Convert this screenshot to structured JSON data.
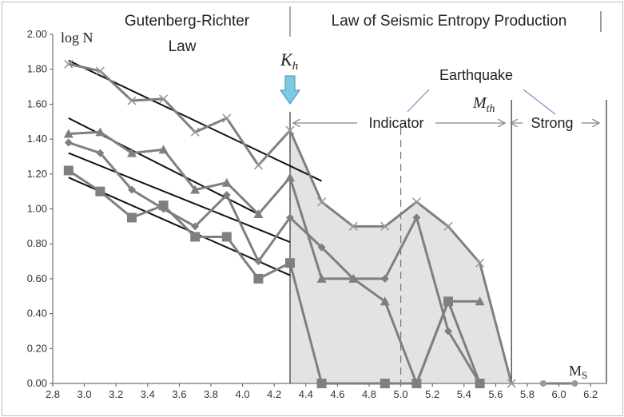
{
  "chart_data": {
    "type": "line",
    "xlim": [
      2.8,
      6.3
    ],
    "ylim": [
      0,
      2.0
    ],
    "x_ticks": [
      "2.8",
      "3.0",
      "3.2",
      "3.4",
      "3.6",
      "3.8",
      "4.0",
      "4.2",
      "4.4",
      "4.6",
      "4.8",
      "5.0",
      "5.2",
      "5.4",
      "5.6",
      "5.8",
      "6.0",
      "6.2"
    ],
    "y_ticks": [
      "0.00",
      "0.20",
      "0.40",
      "0.60",
      "0.80",
      "1.00",
      "1.20",
      "1.40",
      "1.60",
      "1.80",
      "2.00"
    ],
    "ylabel": "log N",
    "xlabel": "M",
    "xlabel_sub": "S",
    "series": [
      {
        "marker": "x",
        "points": [
          [
            2.9,
            1.83
          ],
          [
            3.1,
            1.79
          ],
          [
            3.3,
            1.62
          ],
          [
            3.5,
            1.63
          ],
          [
            3.7,
            1.44
          ],
          [
            3.9,
            1.52
          ],
          [
            4.1,
            1.25
          ],
          [
            4.3,
            1.45
          ],
          [
            4.5,
            1.04
          ],
          [
            4.7,
            0.9
          ],
          [
            4.9,
            0.9
          ],
          [
            5.1,
            1.04
          ],
          [
            5.3,
            0.9
          ],
          [
            5.5,
            0.69
          ],
          [
            5.7,
            0.0
          ]
        ]
      },
      {
        "marker": "triangle",
        "points": [
          [
            2.9,
            1.43
          ],
          [
            3.1,
            1.44
          ],
          [
            3.3,
            1.32
          ],
          [
            3.5,
            1.34
          ],
          [
            3.7,
            1.11
          ],
          [
            3.9,
            1.15
          ],
          [
            4.1,
            0.97
          ],
          [
            4.3,
            1.18
          ],
          [
            4.5,
            0.6
          ],
          [
            4.7,
            0.6
          ],
          [
            4.9,
            0.47
          ],
          [
            5.1,
            0.0
          ],
          [
            5.3,
            0.47
          ],
          [
            5.5,
            0.47
          ]
        ]
      },
      {
        "marker": "diamond",
        "points": [
          [
            2.9,
            1.38
          ],
          [
            3.1,
            1.32
          ],
          [
            3.3,
            1.11
          ],
          [
            3.5,
            1.0
          ],
          [
            3.7,
            0.9
          ],
          [
            3.9,
            1.08
          ],
          [
            4.1,
            0.7
          ],
          [
            4.3,
            0.95
          ],
          [
            4.5,
            0.78
          ],
          [
            4.7,
            0.6
          ],
          [
            4.9,
            0.6
          ],
          [
            5.1,
            0.95
          ],
          [
            5.3,
            0.3
          ],
          [
            5.5,
            0.0
          ]
        ]
      },
      {
        "marker": "square",
        "points": [
          [
            2.9,
            1.22
          ],
          [
            3.1,
            1.1
          ],
          [
            3.3,
            0.95
          ],
          [
            3.5,
            1.02
          ],
          [
            3.7,
            0.84
          ],
          [
            3.9,
            0.84
          ],
          [
            4.1,
            0.6
          ],
          [
            4.3,
            0.69
          ],
          [
            4.5,
            0.0
          ],
          [
            4.9,
            0.0
          ],
          [
            5.1,
            0.0
          ],
          [
            5.3,
            0.47
          ],
          [
            5.5,
            0.0
          ]
        ]
      },
      {
        "marker": "circle",
        "points": [
          [
            5.9,
            0.0
          ],
          [
            6.1,
            0.0
          ]
        ]
      }
    ],
    "fit_lines": [
      [
        [
          2.9,
          1.85
        ],
        [
          4.5,
          1.16
        ]
      ],
      [
        [
          2.9,
          1.52
        ],
        [
          4.1,
          0.97
        ]
      ],
      [
        [
          2.9,
          1.32
        ],
        [
          4.3,
          0.81
        ]
      ],
      [
        [
          2.9,
          1.18
        ],
        [
          4.3,
          0.62
        ]
      ]
    ],
    "shaded_region": [
      [
        4.3,
        1.45
      ],
      [
        4.5,
        1.04
      ],
      [
        4.7,
        0.9
      ],
      [
        4.9,
        0.9
      ],
      [
        5.1,
        1.04
      ],
      [
        5.3,
        0.9
      ],
      [
        5.5,
        0.69
      ],
      [
        5.7,
        0.0
      ],
      [
        4.3,
        0.0
      ]
    ],
    "vertical_lines": [
      {
        "x": 4.3,
        "style": "solid"
      },
      {
        "x": 5.0,
        "style": "dashed"
      },
      {
        "x": 5.7,
        "style": "solid"
      },
      {
        "x": 6.3,
        "style": "solid"
      }
    ],
    "annotations": {
      "gr_title_line1": "Gutenberg-Richter",
      "gr_title_line2": "Law",
      "entropy_title": "Law of Seismic Entropy Production",
      "kh_main": "K",
      "kh_sub": "h",
      "mth_main": "M",
      "mth_sub": "th",
      "earthquake": "Earthquake",
      "indicator": "Indicator",
      "strong": "Strong"
    }
  }
}
